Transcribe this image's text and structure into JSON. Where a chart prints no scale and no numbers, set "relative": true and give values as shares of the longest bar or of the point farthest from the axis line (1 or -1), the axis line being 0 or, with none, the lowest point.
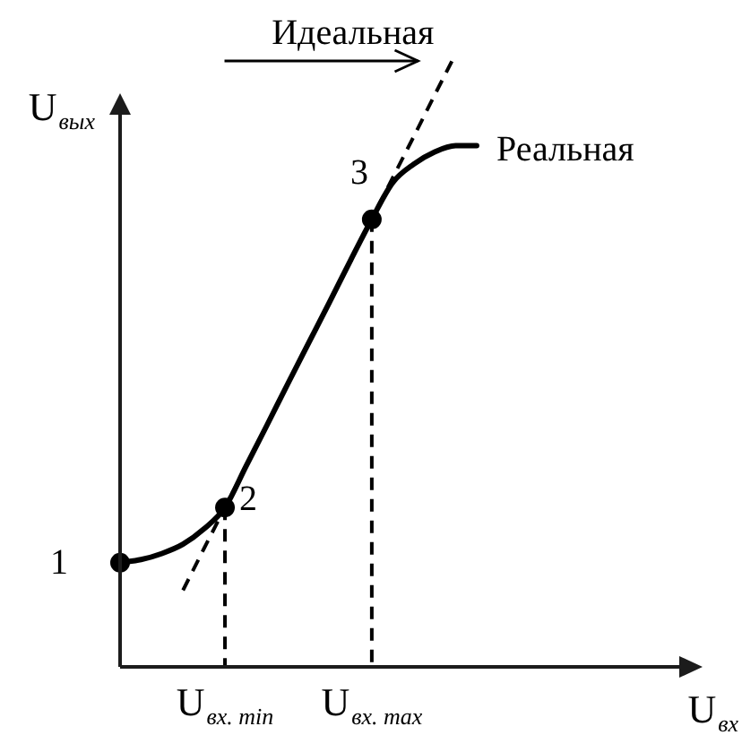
{
  "chart_data": {
    "type": "line",
    "relative": true,
    "xlabel": "U$_{вх}$",
    "ylabel": "U$_{вых}$",
    "marker": "none",
    "categories": [
      null,
      null,
      null,
      null,
      null,
      "U$_{вх. min}$",
      null,
      null,
      null,
      null,
      null,
      null,
      "U$_{вх. max}$",
      null,
      null,
      null,
      null,
      null,
      null,
      null,
      null,
      null,
      null,
      null,
      null,
      null,
      null,
      null
    ],
    "series": [
      {
        "name": "Идеальная",
        "color": "#000000",
        "line_style": "dashed",
        "values": [
          null,
          null,
          null,
          0.125,
          0.193,
          0.26,
          0.327,
          0.394,
          0.462,
          0.529,
          0.596,
          0.664,
          0.73,
          0.798,
          0.865,
          0.933,
          1,
          null,
          null,
          null,
          null,
          null,
          null,
          null,
          null,
          null,
          null,
          null
        ]
      },
      {
        "name": "Реальная",
        "color": "#000000",
        "line_style": "solid",
        "values": [
          0.17,
          0.175,
          0.185,
          0.2,
          0.225,
          0.26,
          0.327,
          0.394,
          0.462,
          0.529,
          0.596,
          0.664,
          0.73,
          0.79,
          0.82,
          0.84,
          0.85,
          0.85,
          null,
          null,
          null,
          null,
          null,
          null,
          null,
          null,
          null,
          null
        ]
      },
      {
        "type": "lollipop",
        "color": "#000000",
        "marker": "circle",
        "line_style": "dashed",
        "values": [
          0.17,
          null,
          null,
          null,
          null,
          0.26,
          null,
          null,
          null,
          null,
          null,
          null,
          0.73,
          null,
          null,
          null,
          null,
          null,
          null,
          null,
          null,
          null,
          null,
          null,
          null,
          null,
          null,
          null
        ]
      }
    ],
    "annotations": [
      "1",
      {
        "text": "2",
        "x": "U$_{вх. min}$",
        "y": 0.26
      },
      {
        "text": "3",
        "x": "U$_{вх. max}$",
        "y": 0.73
      }
    ]
  }
}
